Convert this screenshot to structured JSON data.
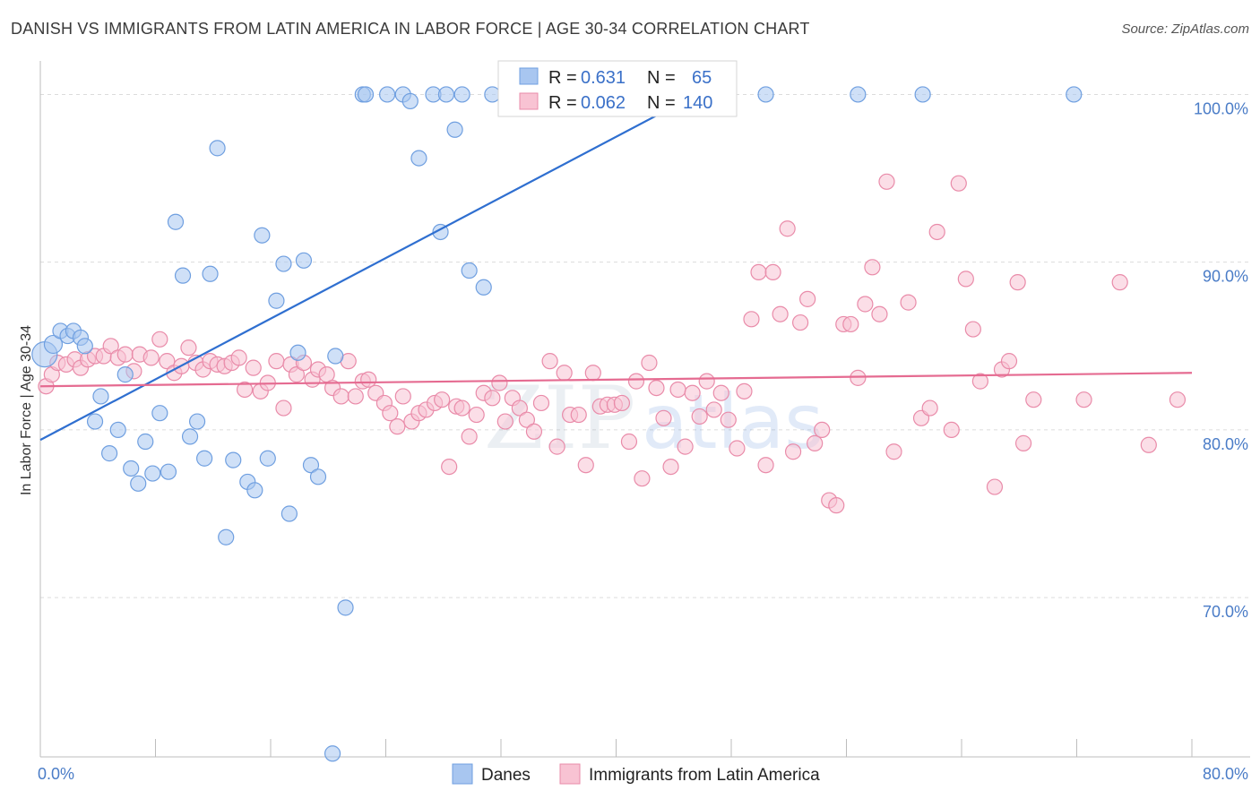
{
  "title": "DANISH VS IMMIGRANTS FROM LATIN AMERICA IN LABOR FORCE | AGE 30-34 CORRELATION CHART",
  "source": "Source: ZipAtlas.com",
  "watermark": {
    "zip": "ZIP",
    "atlas": "atlas"
  },
  "legend_box": {
    "r_label": "R =",
    "n_label": "N =",
    "rows": [
      {
        "r": "0.631",
        "n": "65",
        "color": "#a8c6f0",
        "stroke": "#6f9fe0"
      },
      {
        "r": "0.062",
        "n": "140",
        "color": "#f8c3d3",
        "stroke": "#e98ba9"
      }
    ]
  },
  "bottom_legend": [
    {
      "label": "Danes",
      "color": "#a8c6f0",
      "stroke": "#6f9fe0"
    },
    {
      "label": "Immigrants from Latin America",
      "color": "#f8c3d3",
      "stroke": "#e98ba9"
    }
  ],
  "chart_data": {
    "type": "scatter",
    "title": "DANISH VS IMMIGRANTS FROM LATIN AMERICA IN LABOR FORCE | AGE 30-34 CORRELATION CHART",
    "xlabel": "",
    "ylabel": "In Labor Force | Age 30-34",
    "xlim": [
      0,
      80
    ],
    "ylim": [
      60.5,
      102
    ],
    "x_ticks": [
      "0.0%",
      "80.0%"
    ],
    "y_ticks": [
      {
        "value": 70,
        "label": "70.0%"
      },
      {
        "value": 80,
        "label": "80.0%"
      },
      {
        "value": 90,
        "label": "90.0%"
      },
      {
        "value": 100,
        "label": "100.0%"
      }
    ],
    "grid": "horizontal dashed",
    "legend_position": "top-center",
    "series": [
      {
        "name": "Danes",
        "color": "#a8c6f0",
        "stroke": "#6f9fe0",
        "line_color": "#2f6fd0",
        "trend": {
          "x": [
            0,
            47.8
          ],
          "y": [
            79.4,
            101.0
          ]
        },
        "points": [
          [
            0.3,
            84.5
          ],
          [
            0.9,
            85.1
          ],
          [
            1.4,
            85.9
          ],
          [
            1.9,
            85.6
          ],
          [
            2.3,
            85.9
          ],
          [
            2.8,
            85.5
          ],
          [
            3.1,
            85.0
          ],
          [
            3.8,
            80.5
          ],
          [
            4.2,
            82.0
          ],
          [
            4.8,
            78.6
          ],
          [
            5.4,
            80.0
          ],
          [
            5.9,
            83.3
          ],
          [
            6.3,
            77.7
          ],
          [
            6.8,
            76.8
          ],
          [
            7.3,
            79.3
          ],
          [
            7.8,
            77.4
          ],
          [
            8.3,
            81.0
          ],
          [
            8.9,
            77.5
          ],
          [
            9.4,
            92.4
          ],
          [
            9.9,
            89.2
          ],
          [
            10.4,
            79.6
          ],
          [
            10.9,
            80.5
          ],
          [
            11.4,
            78.3
          ],
          [
            11.8,
            89.3
          ],
          [
            12.3,
            96.8
          ],
          [
            12.9,
            73.6
          ],
          [
            13.4,
            78.2
          ],
          [
            14.4,
            76.9
          ],
          [
            14.9,
            76.4
          ],
          [
            15.4,
            91.6
          ],
          [
            15.8,
            78.3
          ],
          [
            16.4,
            87.7
          ],
          [
            16.9,
            89.9
          ],
          [
            17.3,
            75.0
          ],
          [
            17.9,
            84.6
          ],
          [
            18.3,
            90.1
          ],
          [
            18.8,
            77.9
          ],
          [
            19.3,
            77.2
          ],
          [
            20.3,
            60.7
          ],
          [
            20.5,
            84.4
          ],
          [
            21.2,
            69.4
          ],
          [
            22.4,
            100.0
          ],
          [
            22.6,
            100.0
          ],
          [
            24.1,
            100.0
          ],
          [
            25.2,
            100.0
          ],
          [
            25.7,
            99.6
          ],
          [
            26.3,
            96.2
          ],
          [
            27.3,
            100.0
          ],
          [
            27.8,
            91.8
          ],
          [
            28.2,
            100.0
          ],
          [
            28.8,
            97.9
          ],
          [
            29.3,
            100.0
          ],
          [
            29.8,
            89.5
          ],
          [
            30.8,
            88.5
          ],
          [
            31.4,
            100.0
          ],
          [
            33.9,
            100.0
          ],
          [
            35.9,
            100.0
          ],
          [
            45.8,
            100.0
          ],
          [
            47.8,
            100.0
          ],
          [
            50.4,
            100.0
          ],
          [
            56.8,
            100.0
          ],
          [
            61.3,
            100.0
          ],
          [
            71.8,
            100.0
          ]
        ]
      },
      {
        "name": "Immigrants from Latin America",
        "color": "#f8c3d3",
        "stroke": "#e98ba9",
        "line_color": "#e56b91",
        "trend": {
          "x": [
            0,
            80
          ],
          "y": [
            82.6,
            83.4
          ]
        },
        "points": [
          [
            0.4,
            82.6
          ],
          [
            0.8,
            83.3
          ],
          [
            1.2,
            84.0
          ],
          [
            1.8,
            83.9
          ],
          [
            2.4,
            84.2
          ],
          [
            2.8,
            83.7
          ],
          [
            3.3,
            84.2
          ],
          [
            3.8,
            84.4
          ],
          [
            4.4,
            84.4
          ],
          [
            4.9,
            85.0
          ],
          [
            5.4,
            84.3
          ],
          [
            5.9,
            84.5
          ],
          [
            6.5,
            83.5
          ],
          [
            6.9,
            84.5
          ],
          [
            7.7,
            84.3
          ],
          [
            8.3,
            85.4
          ],
          [
            8.8,
            84.1
          ],
          [
            9.3,
            83.4
          ],
          [
            9.8,
            83.8
          ],
          [
            10.3,
            84.9
          ],
          [
            10.8,
            84.0
          ],
          [
            11.3,
            83.6
          ],
          [
            11.8,
            84.1
          ],
          [
            12.3,
            83.9
          ],
          [
            12.8,
            83.8
          ],
          [
            13.3,
            84.0
          ],
          [
            13.8,
            84.3
          ],
          [
            14.2,
            82.4
          ],
          [
            14.8,
            83.7
          ],
          [
            15.3,
            82.3
          ],
          [
            15.8,
            82.8
          ],
          [
            16.4,
            84.1
          ],
          [
            16.9,
            81.3
          ],
          [
            17.4,
            83.9
          ],
          [
            17.8,
            83.3
          ],
          [
            18.3,
            84.0
          ],
          [
            18.9,
            83.0
          ],
          [
            19.3,
            83.6
          ],
          [
            19.9,
            83.3
          ],
          [
            20.3,
            82.5
          ],
          [
            20.9,
            82.0
          ],
          [
            21.4,
            84.1
          ],
          [
            21.9,
            82.0
          ],
          [
            22.4,
            82.9
          ],
          [
            22.8,
            83.0
          ],
          [
            23.3,
            82.2
          ],
          [
            23.9,
            81.6
          ],
          [
            24.3,
            81.0
          ],
          [
            24.8,
            80.2
          ],
          [
            25.2,
            82.0
          ],
          [
            25.8,
            80.5
          ],
          [
            26.3,
            81.0
          ],
          [
            26.8,
            81.2
          ],
          [
            27.4,
            81.6
          ],
          [
            27.9,
            81.8
          ],
          [
            28.4,
            77.8
          ],
          [
            28.9,
            81.4
          ],
          [
            29.3,
            81.3
          ],
          [
            29.8,
            79.6
          ],
          [
            30.3,
            80.9
          ],
          [
            30.8,
            82.2
          ],
          [
            31.4,
            81.9
          ],
          [
            31.9,
            82.8
          ],
          [
            32.3,
            80.5
          ],
          [
            32.8,
            81.9
          ],
          [
            33.3,
            81.3
          ],
          [
            33.8,
            80.6
          ],
          [
            34.3,
            79.9
          ],
          [
            34.8,
            81.6
          ],
          [
            35.4,
            84.1
          ],
          [
            35.9,
            79.0
          ],
          [
            36.4,
            83.4
          ],
          [
            36.8,
            80.9
          ],
          [
            37.4,
            80.9
          ],
          [
            37.9,
            77.9
          ],
          [
            38.4,
            83.4
          ],
          [
            38.9,
            81.4
          ],
          [
            39.4,
            81.5
          ],
          [
            39.9,
            81.5
          ],
          [
            40.4,
            81.6
          ],
          [
            40.9,
            79.3
          ],
          [
            41.4,
            82.9
          ],
          [
            41.8,
            77.1
          ],
          [
            42.3,
            84.0
          ],
          [
            42.8,
            82.5
          ],
          [
            43.3,
            80.7
          ],
          [
            43.8,
            77.8
          ],
          [
            44.3,
            82.4
          ],
          [
            44.8,
            79.0
          ],
          [
            45.3,
            82.2
          ],
          [
            45.8,
            80.8
          ],
          [
            46.3,
            82.9
          ],
          [
            46.8,
            81.2
          ],
          [
            47.3,
            82.2
          ],
          [
            47.8,
            80.6
          ],
          [
            48.4,
            78.9
          ],
          [
            48.9,
            82.3
          ],
          [
            49.4,
            86.6
          ],
          [
            49.9,
            89.4
          ],
          [
            50.4,
            77.9
          ],
          [
            50.9,
            89.4
          ],
          [
            51.4,
            86.9
          ],
          [
            51.9,
            92.0
          ],
          [
            52.3,
            78.7
          ],
          [
            52.8,
            86.4
          ],
          [
            53.3,
            87.8
          ],
          [
            53.8,
            79.2
          ],
          [
            54.3,
            80.0
          ],
          [
            54.8,
            75.8
          ],
          [
            55.3,
            75.5
          ],
          [
            55.8,
            86.3
          ],
          [
            56.3,
            86.3
          ],
          [
            56.8,
            83.1
          ],
          [
            57.3,
            87.5
          ],
          [
            57.8,
            89.7
          ],
          [
            58.3,
            86.9
          ],
          [
            58.8,
            94.8
          ],
          [
            59.3,
            78.7
          ],
          [
            60.3,
            87.6
          ],
          [
            61.2,
            80.7
          ],
          [
            61.8,
            81.3
          ],
          [
            62.3,
            91.8
          ],
          [
            63.3,
            80.0
          ],
          [
            63.8,
            94.7
          ],
          [
            64.3,
            89.0
          ],
          [
            64.8,
            86.0
          ],
          [
            65.3,
            82.9
          ],
          [
            66.3,
            76.6
          ],
          [
            66.8,
            83.6
          ],
          [
            67.3,
            84.1
          ],
          [
            67.9,
            88.8
          ],
          [
            68.3,
            79.2
          ],
          [
            69.0,
            81.8
          ],
          [
            72.5,
            81.8
          ],
          [
            75.0,
            88.8
          ],
          [
            77.0,
            79.1
          ],
          [
            79.0,
            81.8
          ]
        ]
      }
    ]
  }
}
